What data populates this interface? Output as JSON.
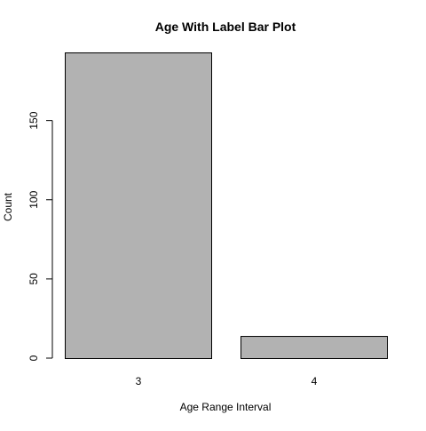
{
  "chart_data": {
    "type": "bar",
    "title": "Age With Label Bar Plot",
    "xlabel": "Age Range Interval",
    "ylabel": "Count",
    "categories": [
      "3",
      "4"
    ],
    "values": [
      193,
      14
    ],
    "ylim": [
      0,
      193
    ],
    "yticks": [
      0,
      50,
      100,
      150
    ],
    "bar_color": "#b2b2b2",
    "bar_border_color": "#000000",
    "grid": false,
    "legend": "none"
  }
}
